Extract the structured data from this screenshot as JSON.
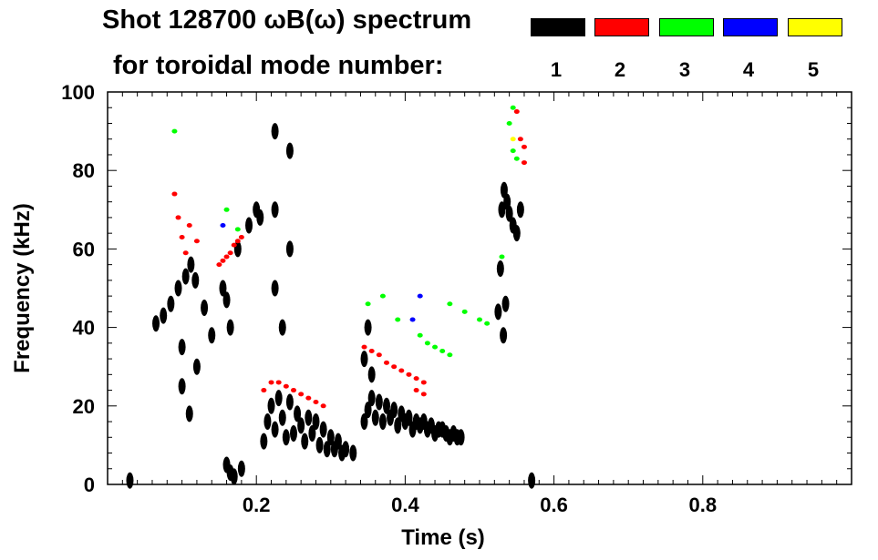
{
  "chart_data": {
    "type": "scatter",
    "title": "Shot 128700 ωB(ω) spectrum",
    "subtitle": "for toroidal mode number:",
    "xlabel": "Time (s)",
    "ylabel": "Frequency (kHz)",
    "xlim": [
      0.0,
      1.0
    ],
    "ylim": [
      0,
      100
    ],
    "x_ticks": [
      0.2,
      0.4,
      0.6,
      0.8
    ],
    "x_tick_labels": [
      "0.2",
      "0.4",
      "0.6",
      "0.8"
    ],
    "y_ticks": [
      0,
      20,
      40,
      60,
      80,
      100
    ],
    "y_tick_labels": [
      "0",
      "20",
      "40",
      "60",
      "80",
      "100"
    ],
    "legend": [
      {
        "label": "1",
        "color": "#000000"
      },
      {
        "label": "2",
        "color": "#ff0000"
      },
      {
        "label": "3",
        "color": "#00ff00"
      },
      {
        "label": "4",
        "color": "#0000ff"
      },
      {
        "label": "5",
        "color": "#ffff00"
      }
    ],
    "series": [
      {
        "name": "n=1",
        "color": "#000000",
        "points": [
          [
            0.065,
            41
          ],
          [
            0.075,
            43
          ],
          [
            0.085,
            46
          ],
          [
            0.095,
            50
          ],
          [
            0.105,
            53
          ],
          [
            0.112,
            56
          ],
          [
            0.118,
            52
          ],
          [
            0.1,
            35
          ],
          [
            0.1,
            25
          ],
          [
            0.11,
            18
          ],
          [
            0.12,
            30
          ],
          [
            0.13,
            45
          ],
          [
            0.14,
            38
          ],
          [
            0.155,
            50
          ],
          [
            0.16,
            47
          ],
          [
            0.165,
            40
          ],
          [
            0.16,
            5
          ],
          [
            0.165,
            3
          ],
          [
            0.17,
            2
          ],
          [
            0.18,
            4
          ],
          [
            0.175,
            60
          ],
          [
            0.19,
            66
          ],
          [
            0.2,
            70
          ],
          [
            0.205,
            68
          ],
          [
            0.21,
            11
          ],
          [
            0.215,
            16
          ],
          [
            0.22,
            20
          ],
          [
            0.225,
            14
          ],
          [
            0.23,
            22
          ],
          [
            0.235,
            17
          ],
          [
            0.24,
            12
          ],
          [
            0.245,
            21
          ],
          [
            0.25,
            13
          ],
          [
            0.255,
            18
          ],
          [
            0.26,
            15
          ],
          [
            0.265,
            11
          ],
          [
            0.27,
            17
          ],
          [
            0.275,
            13
          ],
          [
            0.28,
            16
          ],
          [
            0.285,
            10
          ],
          [
            0.29,
            14
          ],
          [
            0.295,
            9
          ],
          [
            0.3,
            12
          ],
          [
            0.305,
            9
          ],
          [
            0.31,
            11
          ],
          [
            0.315,
            8
          ],
          [
            0.32,
            9
          ],
          [
            0.33,
            8
          ],
          [
            0.225,
            90
          ],
          [
            0.225,
            70
          ],
          [
            0.225,
            50
          ],
          [
            0.245,
            85
          ],
          [
            0.245,
            60
          ],
          [
            0.235,
            40
          ],
          [
            0.345,
            16
          ],
          [
            0.35,
            19
          ],
          [
            0.355,
            22
          ],
          [
            0.36,
            17
          ],
          [
            0.365,
            21
          ],
          [
            0.37,
            16
          ],
          [
            0.375,
            20
          ],
          [
            0.38,
            17
          ],
          [
            0.385,
            19
          ],
          [
            0.39,
            15
          ],
          [
            0.395,
            18
          ],
          [
            0.4,
            16
          ],
          [
            0.405,
            17
          ],
          [
            0.41,
            14
          ],
          [
            0.415,
            16
          ],
          [
            0.42,
            15
          ],
          [
            0.425,
            16
          ],
          [
            0.43,
            14
          ],
          [
            0.435,
            15
          ],
          [
            0.44,
            13
          ],
          [
            0.445,
            14
          ],
          [
            0.45,
            14
          ],
          [
            0.455,
            13
          ],
          [
            0.46,
            12
          ],
          [
            0.465,
            13
          ],
          [
            0.47,
            12
          ],
          [
            0.475,
            12
          ],
          [
            0.345,
            32
          ],
          [
            0.35,
            40
          ],
          [
            0.355,
            28
          ],
          [
            0.525,
            44
          ],
          [
            0.528,
            55
          ],
          [
            0.53,
            70
          ],
          [
            0.533,
            75
          ],
          [
            0.537,
            72
          ],
          [
            0.54,
            69
          ],
          [
            0.545,
            66
          ],
          [
            0.55,
            64
          ],
          [
            0.555,
            70
          ],
          [
            0.535,
            46
          ],
          [
            0.532,
            38
          ],
          [
            0.03,
            1
          ],
          [
            0.57,
            1
          ]
        ]
      },
      {
        "name": "n=2",
        "color": "#ff0000",
        "points": [
          [
            0.09,
            74
          ],
          [
            0.095,
            68
          ],
          [
            0.1,
            63
          ],
          [
            0.105,
            59
          ],
          [
            0.11,
            66
          ],
          [
            0.12,
            62
          ],
          [
            0.15,
            56
          ],
          [
            0.155,
            57
          ],
          [
            0.16,
            58
          ],
          [
            0.165,
            59
          ],
          [
            0.17,
            61
          ],
          [
            0.175,
            62
          ],
          [
            0.18,
            63
          ],
          [
            0.21,
            24
          ],
          [
            0.22,
            26
          ],
          [
            0.23,
            26
          ],
          [
            0.24,
            25
          ],
          [
            0.25,
            24
          ],
          [
            0.26,
            23
          ],
          [
            0.27,
            22
          ],
          [
            0.28,
            21
          ],
          [
            0.29,
            20
          ],
          [
            0.345,
            35
          ],
          [
            0.355,
            34
          ],
          [
            0.365,
            33
          ],
          [
            0.375,
            31
          ],
          [
            0.385,
            30
          ],
          [
            0.395,
            29
          ],
          [
            0.405,
            28
          ],
          [
            0.415,
            27
          ],
          [
            0.425,
            26
          ],
          [
            0.415,
            24
          ],
          [
            0.425,
            23
          ],
          [
            0.55,
            95
          ],
          [
            0.555,
            88
          ],
          [
            0.56,
            82
          ],
          [
            0.56,
            86
          ]
        ]
      },
      {
        "name": "n=3",
        "color": "#00ff00",
        "points": [
          [
            0.09,
            90
          ],
          [
            0.16,
            70
          ],
          [
            0.175,
            65
          ],
          [
            0.35,
            46
          ],
          [
            0.37,
            48
          ],
          [
            0.39,
            42
          ],
          [
            0.42,
            38
          ],
          [
            0.43,
            36
          ],
          [
            0.44,
            35
          ],
          [
            0.45,
            34
          ],
          [
            0.46,
            33
          ],
          [
            0.46,
            46
          ],
          [
            0.48,
            44
          ],
          [
            0.5,
            42
          ],
          [
            0.51,
            41
          ],
          [
            0.53,
            58
          ],
          [
            0.54,
            92
          ],
          [
            0.545,
            85
          ],
          [
            0.55,
            83
          ],
          [
            0.545,
            96
          ]
        ]
      },
      {
        "name": "n=4",
        "color": "#0000ff",
        "points": [
          [
            0.155,
            66
          ],
          [
            0.41,
            42
          ],
          [
            0.42,
            48
          ]
        ]
      },
      {
        "name": "n=5",
        "color": "#ffff00",
        "points": [
          [
            0.545,
            88
          ]
        ]
      }
    ]
  }
}
